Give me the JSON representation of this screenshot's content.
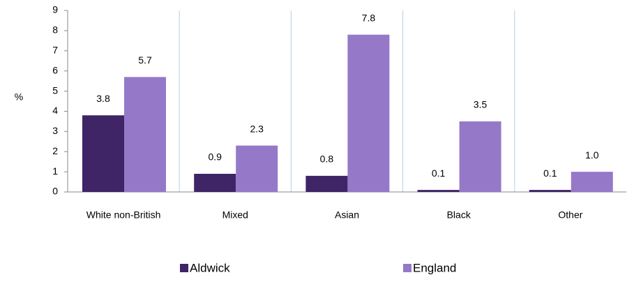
{
  "chart_data": {
    "type": "bar",
    "y_label": "%",
    "categories": [
      "White non-British",
      "Mixed",
      "Asian",
      "Black",
      "Other"
    ],
    "series": [
      {
        "name": "Aldwick",
        "color": "#3f2466",
        "values": [
          3.8,
          0.9,
          0.8,
          0.1,
          0.1
        ]
      },
      {
        "name": "England",
        "color": "#9579c8",
        "values": [
          5.7,
          2.3,
          7.8,
          3.5,
          1.0
        ],
        "value_labels": [
          "5.7",
          "2.3",
          "7.8",
          "3.5",
          "1.0"
        ]
      }
    ],
    "ylim": [
      0,
      9
    ],
    "yticks": [
      0,
      1,
      2,
      3,
      4,
      5,
      6,
      7,
      8,
      9
    ],
    "grid": true
  }
}
